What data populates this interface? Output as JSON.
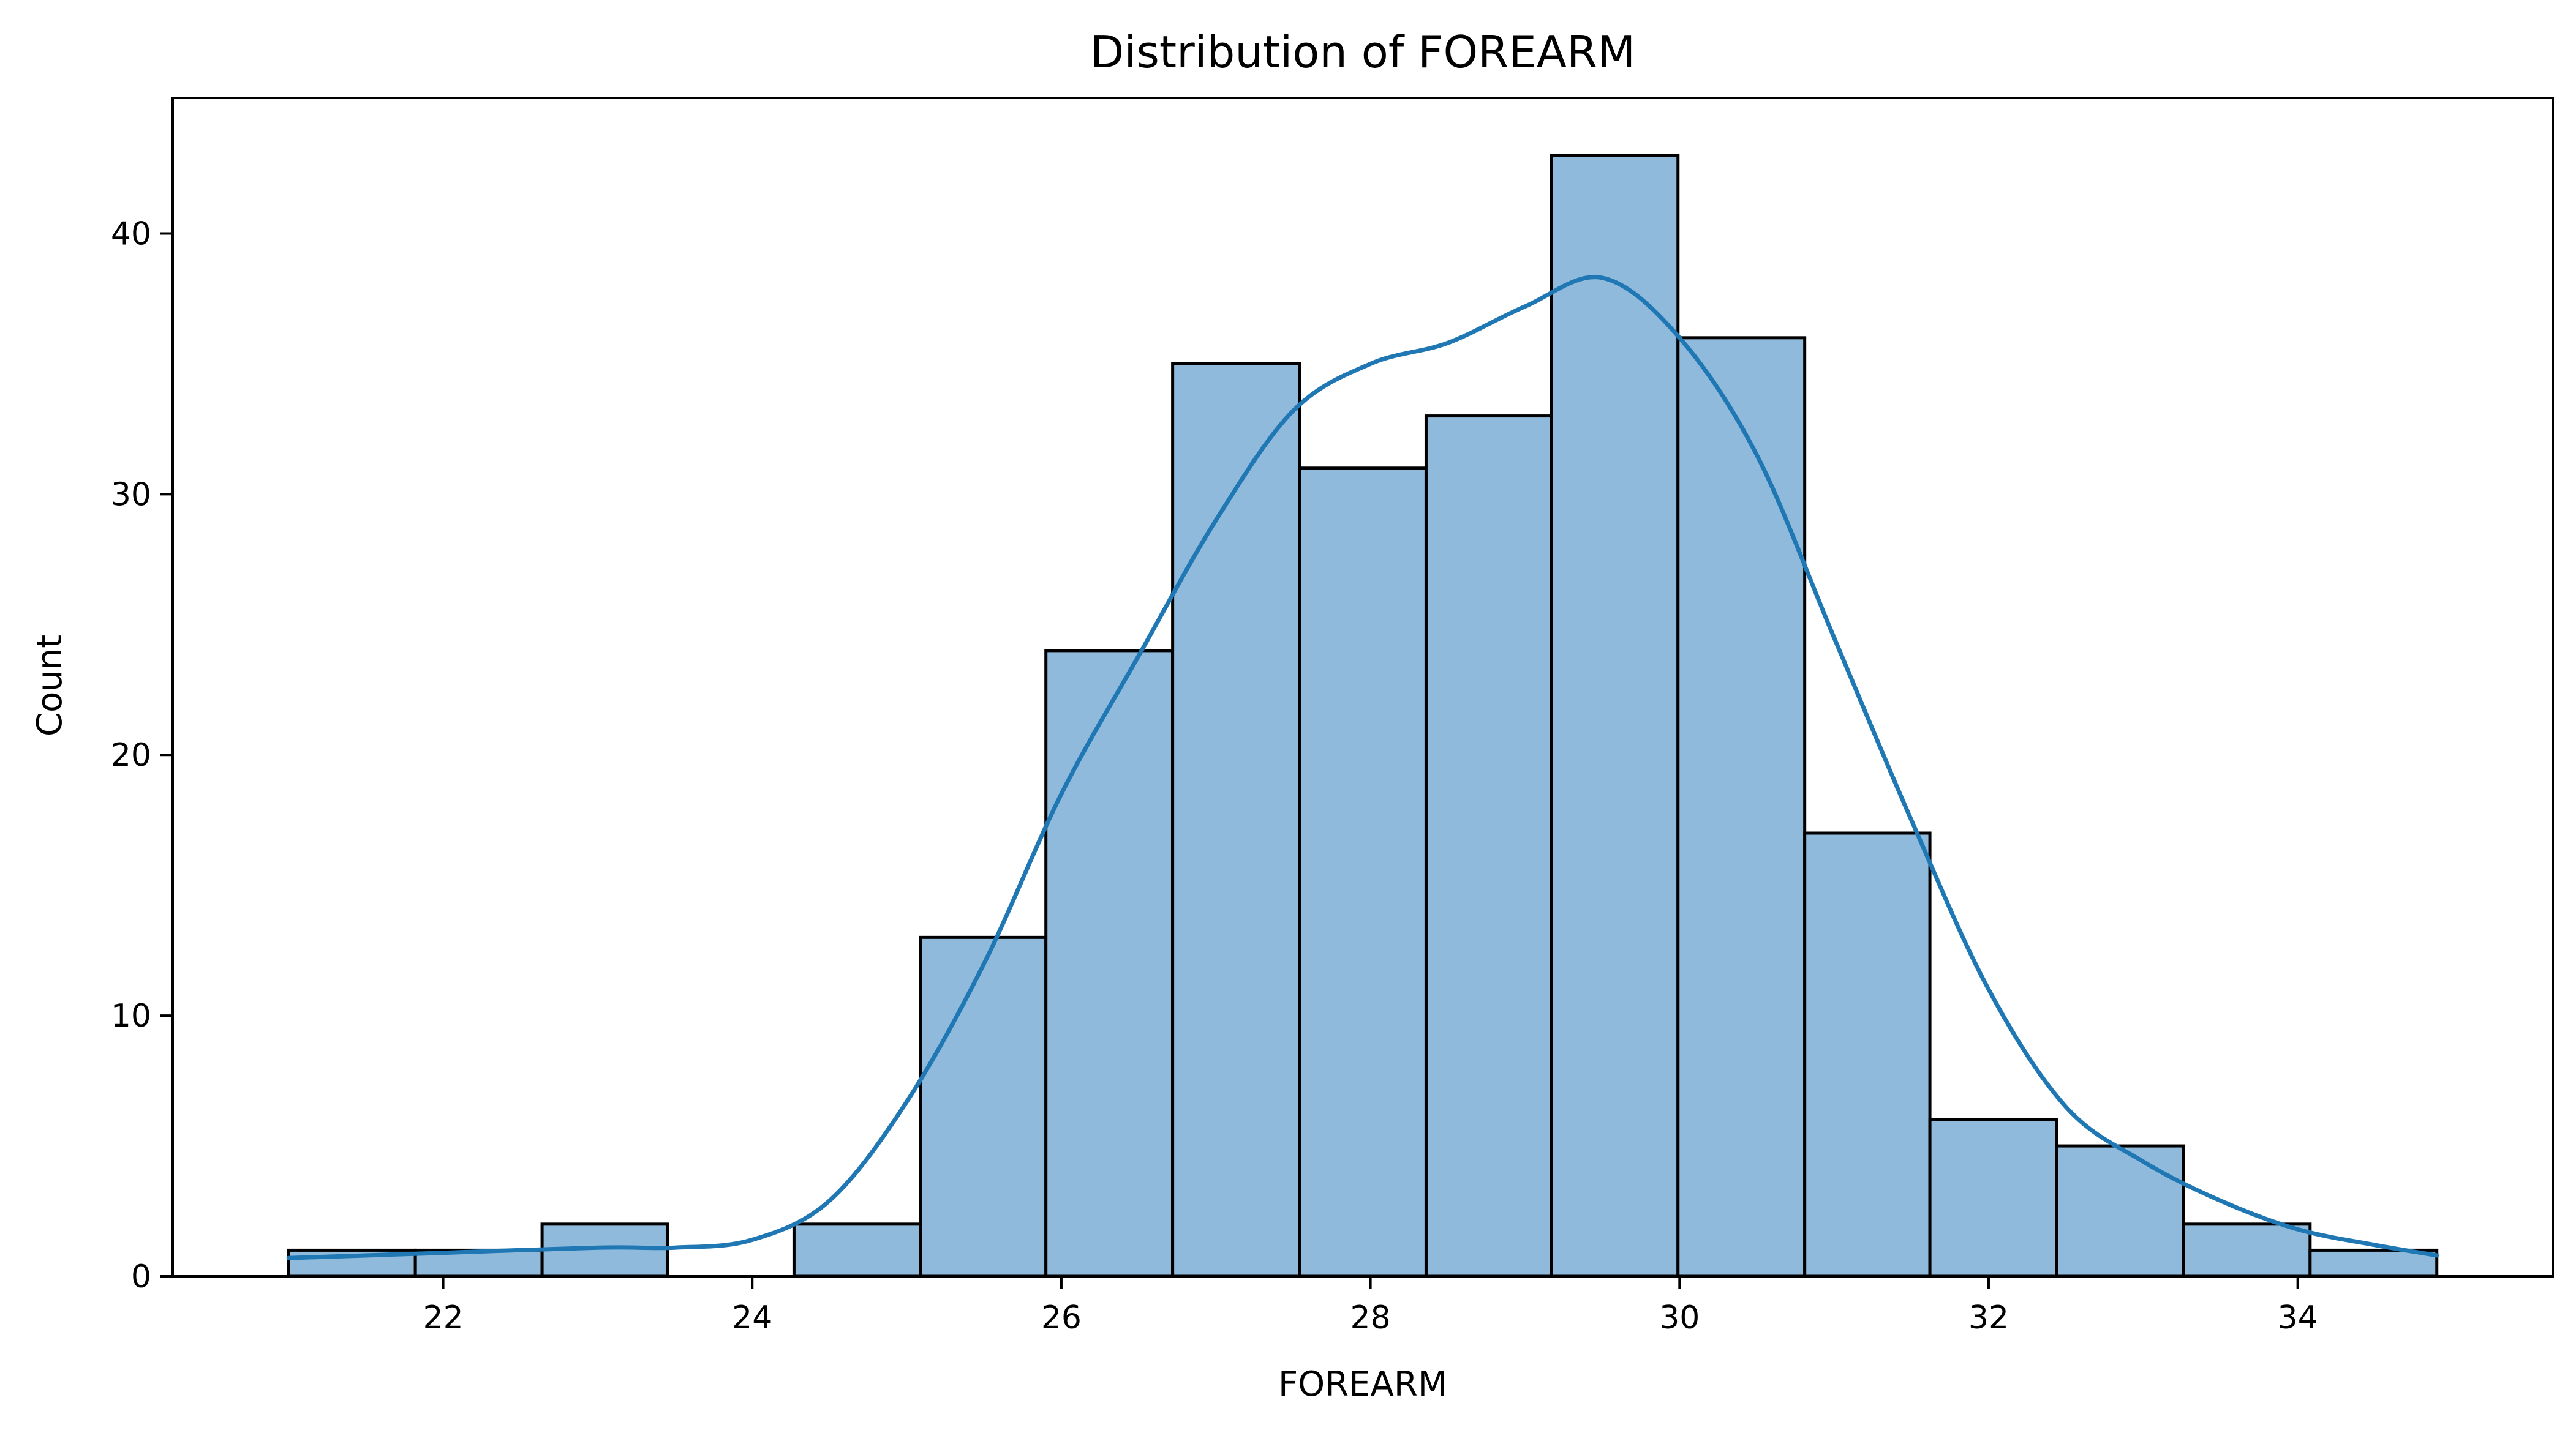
{
  "chart_data": {
    "type": "bar",
    "title": "Distribution of FOREARM",
    "xlabel": "FOREARM",
    "ylabel": "Count",
    "xlim": [
      20.25,
      35.65
    ],
    "ylim": [
      0,
      45.2
    ],
    "xticks": [
      22,
      24,
      26,
      28,
      30,
      32,
      34
    ],
    "yticks": [
      0,
      10,
      20,
      30,
      40
    ],
    "grid": false,
    "bins": {
      "edges": [
        21.0,
        21.82,
        22.64,
        23.45,
        24.27,
        25.09,
        25.9,
        26.72,
        27.54,
        28.36,
        29.17,
        29.99,
        30.81,
        31.62,
        32.44,
        33.26,
        34.08,
        34.9
      ],
      "counts": [
        1,
        1,
        2,
        0,
        2,
        13,
        24,
        35,
        31,
        33,
        43,
        36,
        17,
        6,
        5,
        2,
        1
      ]
    },
    "kde": {
      "x": [
        21.0,
        22.0,
        23.0,
        23.5,
        24.0,
        24.5,
        25.0,
        25.5,
        26.0,
        26.5,
        27.0,
        27.5,
        28.0,
        28.5,
        29.0,
        29.5,
        30.0,
        30.5,
        31.0,
        31.5,
        32.0,
        32.5,
        33.0,
        33.5,
        34.0,
        34.5,
        34.9
      ],
      "y": [
        0.7,
        0.9,
        1.1,
        1.1,
        1.4,
        2.9,
        6.7,
        12.0,
        18.5,
        23.8,
        29.0,
        33.2,
        35.0,
        35.8,
        37.2,
        38.3,
        36.0,
        31.5,
        24.5,
        17.5,
        11.0,
        6.5,
        4.4,
        2.9,
        1.8,
        1.2,
        0.8
      ]
    }
  }
}
